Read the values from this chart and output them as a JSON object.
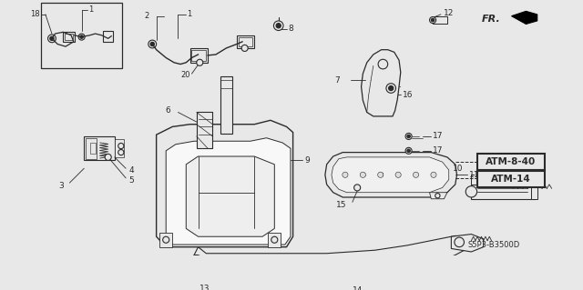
{
  "bg_color": "#e8e8e8",
  "white": "#ffffff",
  "line_color": "#2a2a2a",
  "dark": "#111111",
  "part_number": "S5P3-B3500D",
  "atm_labels": [
    "ATM-8-40",
    "ATM-14"
  ],
  "fr_text": "FR."
}
